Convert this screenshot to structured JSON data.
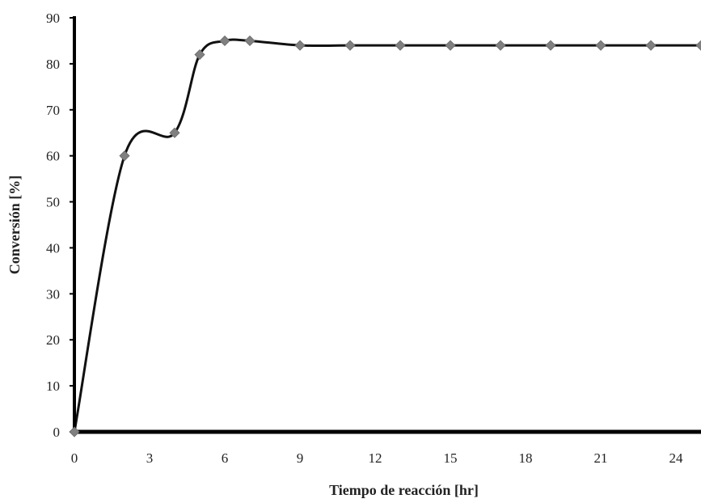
{
  "chart_data": {
    "type": "line",
    "title": "",
    "xlabel": "Tiempo de reacción [hr]",
    "ylabel": "Conversión [%]",
    "xlim": [
      0,
      25
    ],
    "ylim": [
      0,
      90
    ],
    "x_ticks": [
      0,
      3,
      6,
      9,
      12,
      15,
      18,
      21,
      24
    ],
    "y_ticks": [
      0,
      10,
      20,
      30,
      40,
      50,
      60,
      70,
      80,
      90
    ],
    "grid": false,
    "legend": "none",
    "smooth": true,
    "series": [
      {
        "x": [
          0,
          2,
          4,
          5,
          6,
          7,
          9,
          11,
          13,
          15,
          17,
          19,
          21,
          23,
          25
        ],
        "y": [
          0,
          60,
          65,
          82,
          85,
          85,
          84,
          84,
          84,
          84,
          84,
          84,
          84,
          84,
          84
        ],
        "line_color": "#111111",
        "marker": "diamond",
        "marker_color": "#808080"
      }
    ]
  }
}
